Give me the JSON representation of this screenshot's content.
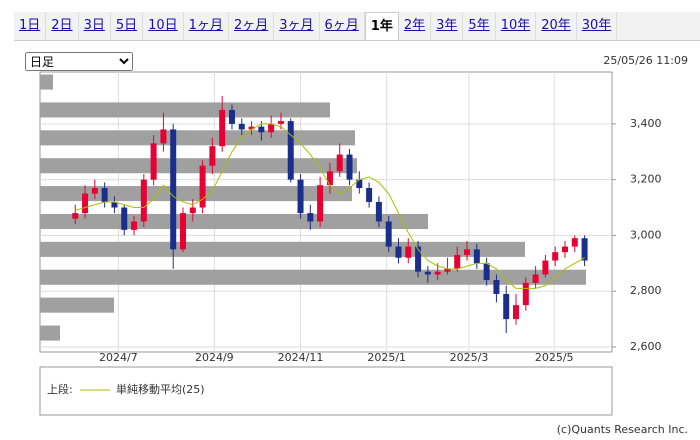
{
  "tabs": {
    "items": [
      "1日",
      "2日",
      "3日",
      "5日",
      "10日",
      "1ヶ月",
      "2ヶ月",
      "3ヶ月",
      "6ヶ月",
      "1年",
      "2年",
      "3年",
      "5年",
      "10年",
      "20年",
      "30年"
    ],
    "selected": 9
  },
  "select": "日足",
  "timestamp": "25/05/26 11:09",
  "chart_data": {
    "type": "candlestick",
    "categories": [
      null,
      null,
      null,
      null,
      null,
      null,
      null,
      null,
      null,
      null,
      null,
      null,
      null,
      null,
      null,
      null,
      null,
      null,
      null,
      null,
      null,
      null,
      null,
      null,
      null,
      null,
      null,
      null,
      null,
      null,
      null,
      null,
      null,
      null,
      null,
      null,
      null,
      null,
      null,
      null,
      null,
      null,
      null,
      null,
      null,
      null,
      null,
      null,
      null,
      null,
      null,
      null,
      null
    ],
    "open": [
      3060,
      3080,
      3150,
      3170,
      3120,
      3100,
      3020,
      3050,
      3200,
      3330,
      3380,
      2950,
      3080,
      3100,
      3250,
      3320,
      3450,
      3400,
      3380,
      3390,
      3370,
      3400,
      3410,
      3200,
      3080,
      3050,
      3180,
      3230,
      3290,
      3200,
      3170,
      3120,
      3050,
      2960,
      2920,
      2960,
      2870,
      2860,
      2870,
      2880,
      2930,
      2950,
      2900,
      2840,
      2790,
      2700,
      2750,
      2830,
      2860,
      2910,
      2940,
      2960,
      2990
    ],
    "high": [
      3110,
      3180,
      3200,
      3190,
      3140,
      3110,
      3070,
      3220,
      3360,
      3440,
      3400,
      3100,
      3130,
      3270,
      3350,
      3500,
      3470,
      3420,
      3410,
      3410,
      3430,
      3440,
      3420,
      3220,
      3110,
      3210,
      3260,
      3330,
      3310,
      3230,
      3190,
      3140,
      3070,
      2990,
      2990,
      2980,
      2890,
      2900,
      2920,
      2960,
      2980,
      2970,
      2920,
      2860,
      2820,
      2790,
      2850,
      2890,
      2930,
      2960,
      2980,
      3000,
      3000
    ],
    "low": [
      3040,
      3060,
      3130,
      3100,
      3080,
      3000,
      3000,
      3030,
      3180,
      3300,
      2880,
      2940,
      3050,
      3080,
      3220,
      3300,
      3380,
      3360,
      3360,
      3340,
      3350,
      3380,
      3190,
      3060,
      3020,
      3030,
      3150,
      3210,
      3180,
      3150,
      3100,
      3030,
      2940,
      2900,
      2900,
      2850,
      2830,
      2840,
      2860,
      2870,
      2910,
      2880,
      2820,
      2760,
      2650,
      2680,
      2730,
      2810,
      2850,
      2890,
      2920,
      2940,
      2890
    ],
    "close": [
      3080,
      3150,
      3170,
      3120,
      3100,
      3020,
      3050,
      3200,
      3330,
      3380,
      2950,
      3080,
      3100,
      3250,
      3320,
      3450,
      3400,
      3380,
      3390,
      3370,
      3400,
      3410,
      3200,
      3080,
      3050,
      3180,
      3230,
      3290,
      3200,
      3170,
      3120,
      3050,
      2960,
      2920,
      2960,
      2870,
      2860,
      2870,
      2880,
      2930,
      2950,
      2900,
      2840,
      2790,
      2700,
      2750,
      2830,
      2860,
      2910,
      2940,
      2960,
      2990,
      2910
    ],
    "up_color": "#e60033",
    "down_color": "#1c2e8c",
    "series": [
      {
        "name": "単純移動平均(25)",
        "color": "#a8c000",
        "values": [
          3090,
          3100,
          3110,
          3120,
          3120,
          3110,
          3100,
          3100,
          3130,
          3180,
          3140,
          3120,
          3110,
          3130,
          3160,
          3230,
          3300,
          3350,
          3380,
          3400,
          3400,
          3390,
          3360,
          3330,
          3290,
          3240,
          3180,
          3150,
          3170,
          3200,
          3210,
          3190,
          3150,
          3080,
          3010,
          2950,
          2910,
          2890,
          2880,
          2880,
          2890,
          2900,
          2900,
          2880,
          2840,
          2810,
          2810,
          2810,
          2820,
          2850,
          2880,
          2900,
          2920
        ]
      }
    ],
    "xlim": [
      -3.6,
      54.8
    ],
    "xticks": [
      {
        "value": 4.4,
        "label": "2024/7"
      },
      {
        "value": 14.2,
        "label": "2024/9"
      },
      {
        "value": 23,
        "label": "2024/11"
      },
      {
        "value": 31.8,
        "label": "2025/1"
      },
      {
        "value": 40.2,
        "label": "2025/3"
      },
      {
        "value": 48.9,
        "label": "2025/5"
      }
    ],
    "ylim": [
      2582,
      3586
    ],
    "yticks": [
      {
        "value": 2600,
        "label": "2,600"
      },
      {
        "value": 2800,
        "label": "2,800"
      },
      {
        "value": 3000,
        "label": "3,000"
      },
      {
        "value": 3200,
        "label": "3,200"
      },
      {
        "value": 3400,
        "label": "3,400"
      }
    ],
    "grid": true,
    "volume_profile": {
      "bins": [
        3600,
        3500,
        3400,
        3300,
        3200,
        3100,
        3000,
        2900,
        2800,
        2700,
        2600
      ],
      "values": [
        13,
        290,
        315,
        317,
        312,
        388,
        485,
        546,
        74,
        20
      ],
      "xlim": [
        0,
        572
      ],
      "color": "#a0a0a0"
    }
  },
  "legend": {
    "label": "上段:"
  },
  "copyright": "(c)Quants Research Inc."
}
